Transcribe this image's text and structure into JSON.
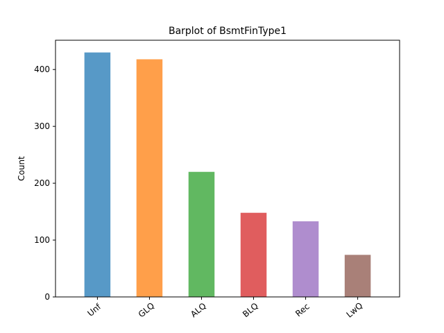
{
  "chart_data": {
    "type": "bar",
    "title": "Barplot of BsmtFinType1",
    "xlabel": "",
    "ylabel": "Count",
    "categories": [
      "Unf",
      "GLQ",
      "ALQ",
      "BLQ",
      "Rec",
      "LwQ"
    ],
    "values": [
      430,
      418,
      220,
      148,
      133,
      74
    ],
    "colors": [
      "#1f77b4",
      "#ff7f0e",
      "#2ca02c",
      "#d62728",
      "#9467bd",
      "#8c564b"
    ],
    "ylim": [
      0,
      451.5
    ],
    "yticks": [
      0,
      100,
      200,
      300,
      400
    ],
    "grid": false,
    "legend": "none"
  }
}
